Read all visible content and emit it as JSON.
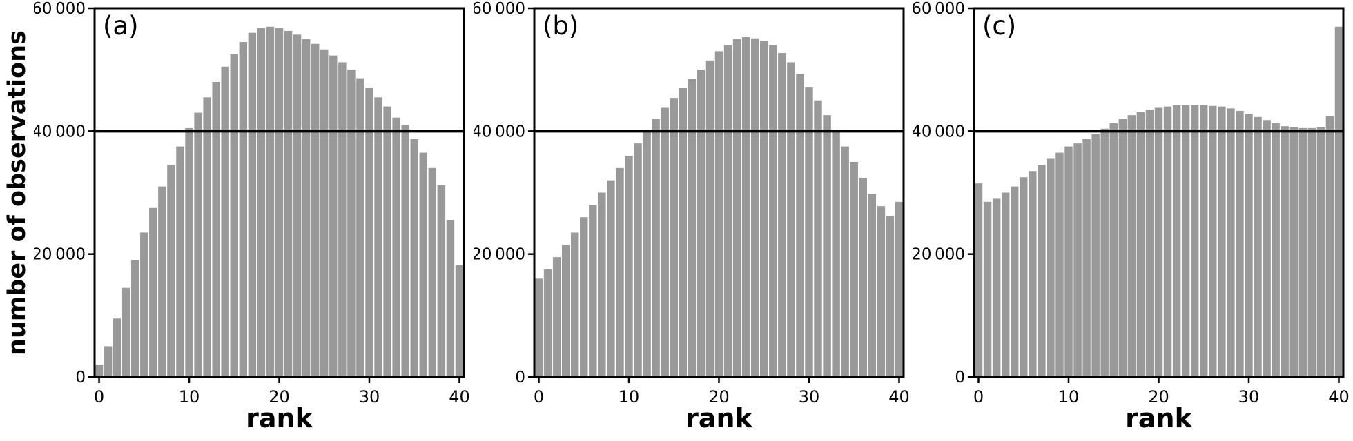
{
  "figure": {
    "ylabel": "number of observations",
    "bar_color": "#999999",
    "axis_color": "#000000",
    "background": "#ffffff",
    "reference_line_y": 40000
  },
  "chart_data": [
    {
      "type": "bar",
      "panel_label": "(a)",
      "xlabel": "rank",
      "ylabel": "number of observations",
      "xlim": [
        -0.5,
        40.5
      ],
      "ylim": [
        0,
        60000
      ],
      "xticks": [
        0,
        10,
        20,
        30,
        40
      ],
      "xtick_labels": [
        "0",
        "10",
        "20",
        "30",
        "40"
      ],
      "yticks": [
        0,
        20000,
        40000,
        60000
      ],
      "ytick_labels": [
        "0",
        "20 000",
        "40 000",
        "60 000"
      ],
      "reference_line_y": 40000,
      "grid": false,
      "x": [
        0,
        1,
        2,
        3,
        4,
        5,
        6,
        7,
        8,
        9,
        10,
        11,
        12,
        13,
        14,
        15,
        16,
        17,
        18,
        19,
        20,
        21,
        22,
        23,
        24,
        25,
        26,
        27,
        28,
        29,
        30,
        31,
        32,
        33,
        34,
        35,
        36,
        37,
        38,
        39,
        40
      ],
      "values": [
        2000,
        5000,
        9500,
        14500,
        19000,
        23500,
        27500,
        31000,
        34500,
        37500,
        40500,
        43000,
        45500,
        48000,
        50500,
        52500,
        54500,
        56000,
        56800,
        57000,
        56800,
        56300,
        55700,
        55000,
        54200,
        53300,
        52300,
        51200,
        50000,
        48600,
        47100,
        45500,
        44000,
        42200,
        41000,
        38700,
        36500,
        34000,
        31200,
        25500,
        18200
      ]
    },
    {
      "type": "bar",
      "panel_label": "(b)",
      "xlabel": "rank",
      "ylabel": "number of observations",
      "xlim": [
        -0.5,
        40.5
      ],
      "ylim": [
        0,
        60000
      ],
      "xticks": [
        0,
        10,
        20,
        30,
        40
      ],
      "xtick_labels": [
        "0",
        "10",
        "20",
        "30",
        "40"
      ],
      "yticks": [
        0,
        20000,
        40000,
        60000
      ],
      "ytick_labels": [
        "0",
        "20 000",
        "40 000",
        "60 000"
      ],
      "reference_line_y": 40000,
      "grid": false,
      "x": [
        0,
        1,
        2,
        3,
        4,
        5,
        6,
        7,
        8,
        9,
        10,
        11,
        12,
        13,
        14,
        15,
        16,
        17,
        18,
        19,
        20,
        21,
        22,
        23,
        24,
        25,
        26,
        27,
        28,
        29,
        30,
        31,
        32,
        33,
        34,
        35,
        36,
        37,
        38,
        39,
        40
      ],
      "values": [
        16000,
        17500,
        19500,
        21500,
        23500,
        26000,
        28000,
        30000,
        32000,
        34000,
        36000,
        38000,
        40000,
        42000,
        43800,
        45400,
        47000,
        48500,
        50000,
        51500,
        53000,
        54000,
        55000,
        55300,
        55100,
        54700,
        54000,
        52700,
        51200,
        49300,
        47200,
        45000,
        42600,
        40000,
        37500,
        35000,
        32400,
        29800,
        27800,
        26200,
        28500
      ]
    },
    {
      "type": "bar",
      "panel_label": "(c)",
      "xlabel": "rank",
      "ylabel": "number of observations",
      "xlim": [
        -0.5,
        40.5
      ],
      "ylim": [
        0,
        60000
      ],
      "xticks": [
        0,
        10,
        20,
        30,
        40
      ],
      "xtick_labels": [
        "0",
        "10",
        "20",
        "30",
        "40"
      ],
      "yticks": [
        0,
        20000,
        40000,
        60000
      ],
      "ytick_labels": [
        "0",
        "20 000",
        "40 000",
        "60 000"
      ],
      "reference_line_y": 40000,
      "grid": false,
      "x": [
        0,
        1,
        2,
        3,
        4,
        5,
        6,
        7,
        8,
        9,
        10,
        11,
        12,
        13,
        14,
        15,
        16,
        17,
        18,
        19,
        20,
        21,
        22,
        23,
        24,
        25,
        26,
        27,
        28,
        29,
        30,
        31,
        32,
        33,
        34,
        35,
        36,
        37,
        38,
        39,
        40
      ],
      "values": [
        31500,
        28500,
        29000,
        30000,
        31000,
        32500,
        33500,
        34500,
        35500,
        36500,
        37500,
        38000,
        38700,
        39500,
        40400,
        41300,
        42000,
        42600,
        43100,
        43500,
        43800,
        44000,
        44200,
        44300,
        44300,
        44200,
        44100,
        44000,
        43700,
        43300,
        42800,
        42300,
        41800,
        41300,
        40800,
        40600,
        40500,
        40500,
        40700,
        42500,
        57000
      ]
    }
  ]
}
